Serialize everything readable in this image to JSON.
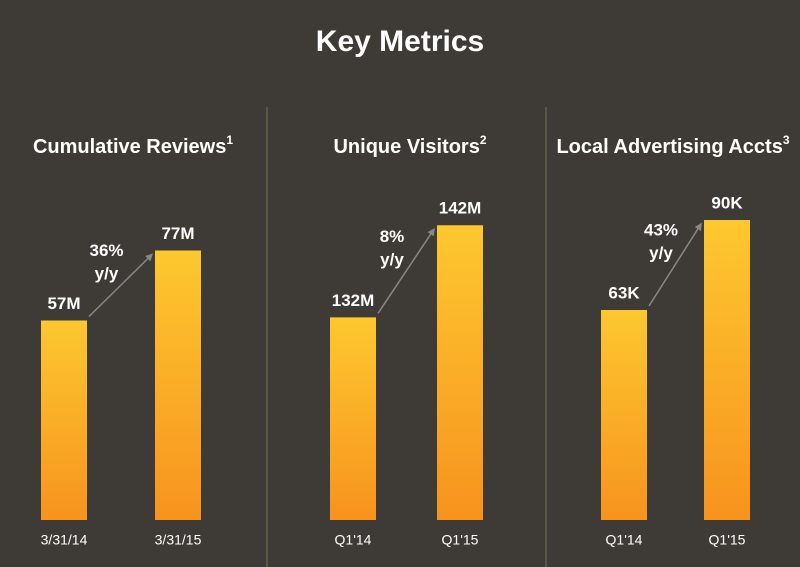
{
  "title": "Key Metrics",
  "bar_gradient": [
    "#fdc82f",
    "#f7931e"
  ],
  "arrow_color": "#8a8784",
  "chart_data": [
    {
      "type": "bar",
      "title": "Cumulative Reviews",
      "title_note": "1",
      "categories": [
        "3/31/14",
        "3/31/15"
      ],
      "values": [
        57000000,
        77000000
      ],
      "value_labels": [
        "57M",
        "77M"
      ],
      "ylim": [
        0,
        100000000
      ],
      "annotation": [
        "36%",
        "y/y"
      ]
    },
    {
      "type": "bar",
      "title": "Unique Visitors",
      "title_note": "2",
      "categories": [
        "Q1'14",
        "Q1'15"
      ],
      "values": [
        132000000,
        142000000
      ],
      "value_labels": [
        "132M",
        "142M"
      ],
      "ylim": [
        110000000,
        148000000
      ],
      "annotation": [
        "8%",
        "y/y"
      ]
    },
    {
      "type": "bar",
      "title": "Local Advertising Accts",
      "title_note": "3",
      "categories": [
        "Q1'14",
        "Q1'15"
      ],
      "values": [
        63000,
        90000
      ],
      "value_labels": [
        "63K",
        "90K"
      ],
      "ylim": [
        0,
        105000
      ],
      "annotation": [
        "43%",
        "y/y"
      ]
    }
  ]
}
